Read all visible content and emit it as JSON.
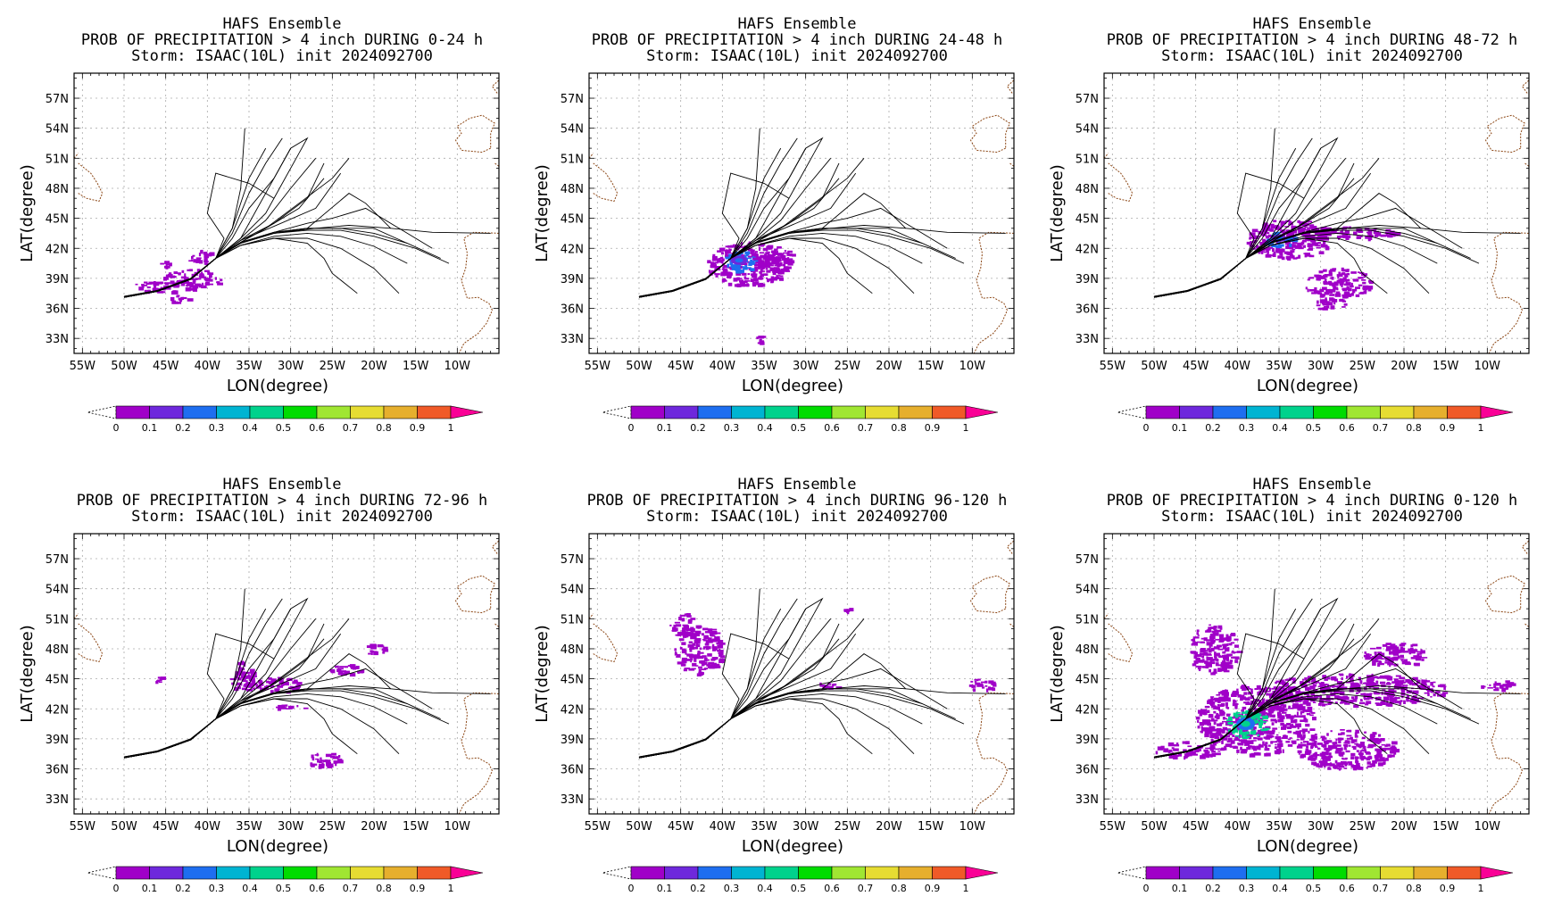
{
  "colors": {
    "colorbar": [
      "#a000c8",
      "#6e28dc",
      "#1e6ef0",
      "#00b4d2",
      "#00d28c",
      "#00dc00",
      "#a0e632",
      "#e6dc32",
      "#e6af2d",
      "#f05a28",
      "#fa0096"
    ],
    "land_outline": "#8b4513",
    "grid": "#aaaaaa",
    "track": "#000000"
  },
  "chart_data": [
    {
      "type": "heatmap",
      "title_lines": [
        "HAFS Ensemble",
        "PROB OF PRECIPITATION > 4 inch DURING  0-24 h",
        "Storm: ISAAC(10L) init 2024092700"
      ],
      "xlabel": "LON(degree)",
      "ylabel": "LAT(degree)",
      "xticks": [
        "55W",
        "50W",
        "45W",
        "40W",
        "35W",
        "30W",
        "25W",
        "20W",
        "15W",
        "10W"
      ],
      "yticks": [
        "57N",
        "54N",
        "51N",
        "48N",
        "45N",
        "42N",
        "39N",
        "36N",
        "33N"
      ],
      "xlim": [
        -56,
        -5
      ],
      "ylim": [
        31.5,
        59.5
      ],
      "grid": true,
      "colorbar_ticks": [
        "0",
        "0.1",
        "0.2",
        "0.3",
        "0.4",
        "0.5",
        "0.6",
        "0.7",
        "0.8",
        "0.9",
        "1"
      ],
      "precip_areas": [
        {
          "lon": -42,
          "lat": 39.0,
          "rlon": 3.5,
          "rlat": 1.0,
          "value": 0.05
        },
        {
          "lon": -46,
          "lat": 38.2,
          "rlon": 3.0,
          "rlat": 0.6,
          "value": 0.08
        },
        {
          "lon": -41,
          "lat": 41.2,
          "rlon": 1.8,
          "rlat": 0.7,
          "value": 0.04
        },
        {
          "lon": -43.5,
          "lat": 37.0,
          "rlon": 1.2,
          "rlat": 0.5,
          "value": 0.03
        },
        {
          "lon": -45,
          "lat": 40.5,
          "rlon": 0.7,
          "rlat": 0.3,
          "value": 0.02
        }
      ]
    },
    {
      "type": "heatmap",
      "title_lines": [
        "HAFS Ensemble",
        "PROB OF PRECIPITATION > 4 inch DURING 24-48 h",
        "Storm: ISAAC(10L) init 2024092700"
      ],
      "xlabel": "LON(degree)",
      "ylabel": "LAT(degree)",
      "xticks": [
        "55W",
        "50W",
        "45W",
        "40W",
        "35W",
        "30W",
        "25W",
        "20W",
        "15W",
        "10W"
      ],
      "yticks": [
        "57N",
        "54N",
        "51N",
        "48N",
        "45N",
        "42N",
        "39N",
        "36N",
        "33N"
      ],
      "xlim": [
        -56,
        -5
      ],
      "ylim": [
        31.5,
        59.5
      ],
      "grid": true,
      "colorbar_ticks": [
        "0",
        "0.1",
        "0.2",
        "0.3",
        "0.4",
        "0.5",
        "0.6",
        "0.7",
        "0.8",
        "0.9",
        "1"
      ],
      "precip_areas": [
        {
          "lon": -37,
          "lat": 40.5,
          "rlon": 5.0,
          "rlat": 2.2,
          "value": 0.06
        },
        {
          "lon": -38,
          "lat": 40.8,
          "rlon": 2.2,
          "rlat": 1.0,
          "value": 0.25
        },
        {
          "lon": -34,
          "lat": 41.0,
          "rlon": 2.5,
          "rlat": 1.3,
          "value": 0.08
        },
        {
          "lon": -35.5,
          "lat": 33.0,
          "rlon": 0.8,
          "rlat": 0.4,
          "value": 0.03
        }
      ]
    },
    {
      "type": "heatmap",
      "title_lines": [
        "HAFS Ensemble",
        "PROB OF PRECIPITATION > 4 inch DURING 48-72 h",
        "Storm: ISAAC(10L) init 2024092700"
      ],
      "xlabel": "LON(degree)",
      "ylabel": "LAT(degree)",
      "xticks": [
        "55W",
        "50W",
        "45W",
        "40W",
        "35W",
        "30W",
        "25W",
        "20W",
        "15W",
        "10W"
      ],
      "yticks": [
        "57N",
        "54N",
        "51N",
        "48N",
        "45N",
        "42N",
        "39N",
        "36N",
        "33N"
      ],
      "xlim": [
        -56,
        -5
      ],
      "ylim": [
        31.5,
        59.5
      ],
      "grid": true,
      "colorbar_ticks": [
        "0",
        "0.1",
        "0.2",
        "0.3",
        "0.4",
        "0.5",
        "0.6",
        "0.7",
        "0.8",
        "0.9",
        "1"
      ],
      "precip_areas": [
        {
          "lon": -34,
          "lat": 43.0,
          "rlon": 5.0,
          "rlat": 2.0,
          "value": 0.07
        },
        {
          "lon": -35,
          "lat": 43.0,
          "rlon": 2.0,
          "rlat": 0.8,
          "value": 0.22
        },
        {
          "lon": -27,
          "lat": 43.6,
          "rlon": 6.0,
          "rlat": 0.6,
          "value": 0.05
        },
        {
          "lon": -28,
          "lat": 38.5,
          "rlon": 4.0,
          "rlat": 1.6,
          "value": 0.04
        },
        {
          "lon": -29,
          "lat": 36.5,
          "rlon": 2.0,
          "rlat": 0.6,
          "value": 0.03
        }
      ]
    },
    {
      "type": "heatmap",
      "title_lines": [
        "HAFS Ensemble",
        "PROB OF PRECIPITATION > 4 inch DURING 72-96 h",
        "Storm: ISAAC(10L) init 2024092700"
      ],
      "xlabel": "LON(degree)",
      "ylabel": "LAT(degree)",
      "xticks": [
        "55W",
        "50W",
        "45W",
        "40W",
        "35W",
        "30W",
        "25W",
        "20W",
        "15W",
        "10W"
      ],
      "yticks": [
        "57N",
        "54N",
        "51N",
        "48N",
        "45N",
        "42N",
        "39N",
        "36N",
        "33N"
      ],
      "xlim": [
        -56,
        -5
      ],
      "ylim": [
        31.5,
        59.5
      ],
      "grid": true,
      "colorbar_ticks": [
        "0",
        "0.1",
        "0.2",
        "0.3",
        "0.4",
        "0.5",
        "0.6",
        "0.7",
        "0.8",
        "0.9",
        "1"
      ],
      "precip_areas": [
        {
          "lon": -36,
          "lat": 45.3,
          "rlon": 1.5,
          "rlat": 1.5,
          "value": 0.06
        },
        {
          "lon": -32,
          "lat": 44.5,
          "rlon": 3.0,
          "rlat": 0.8,
          "value": 0.05
        },
        {
          "lon": -23,
          "lat": 46.0,
          "rlon": 2.5,
          "rlat": 0.5,
          "value": 0.04
        },
        {
          "lon": -20,
          "lat": 48.0,
          "rlon": 1.2,
          "rlat": 0.6,
          "value": 0.04
        },
        {
          "lon": -30,
          "lat": 42.3,
          "rlon": 2.0,
          "rlat": 0.3,
          "value": 0.03
        },
        {
          "lon": -26,
          "lat": 37.0,
          "rlon": 2.0,
          "rlat": 0.8,
          "value": 0.03
        },
        {
          "lon": -46,
          "lat": 45.0,
          "rlon": 0.5,
          "rlat": 0.5,
          "value": 0.02
        }
      ]
    },
    {
      "type": "heatmap",
      "title_lines": [
        "HAFS Ensemble",
        "PROB OF PRECIPITATION > 4 inch DURING 96-120 h",
        "Storm: ISAAC(10L) init 2024092700"
      ],
      "xlabel": "LON(degree)",
      "ylabel": "LAT(degree)",
      "xticks": [
        "55W",
        "50W",
        "45W",
        "40W",
        "35W",
        "30W",
        "25W",
        "20W",
        "15W",
        "10W"
      ],
      "yticks": [
        "57N",
        "54N",
        "51N",
        "48N",
        "45N",
        "42N",
        "39N",
        "36N",
        "33N"
      ],
      "xlim": [
        -56,
        -5
      ],
      "ylim": [
        31.5,
        59.5
      ],
      "grid": true,
      "colorbar_ticks": [
        "0",
        "0.1",
        "0.2",
        "0.3",
        "0.4",
        "0.5",
        "0.6",
        "0.7",
        "0.8",
        "0.9",
        "1"
      ],
      "precip_areas": [
        {
          "lon": -43,
          "lat": 48.0,
          "rlon": 3.0,
          "rlat": 2.5,
          "value": 0.05
        },
        {
          "lon": -45,
          "lat": 50.5,
          "rlon": 1.5,
          "rlat": 1.2,
          "value": 0.04
        },
        {
          "lon": -9,
          "lat": 44.5,
          "rlon": 2.0,
          "rlat": 0.6,
          "value": 0.05
        },
        {
          "lon": -27,
          "lat": 44.5,
          "rlon": 1.5,
          "rlat": 0.3,
          "value": 0.02
        },
        {
          "lon": -25,
          "lat": 52.0,
          "rlon": 0.5,
          "rlat": 0.3,
          "value": 0.02
        }
      ]
    },
    {
      "type": "heatmap",
      "title_lines": [
        "HAFS Ensemble",
        "PROB OF PRECIPITATION > 4 inch DURING 0-120 h",
        "Storm: ISAAC(10L) init 2024092700"
      ],
      "xlabel": "LON(degree)",
      "ylabel": "LAT(degree)",
      "xticks": [
        "55W",
        "50W",
        "45W",
        "40W",
        "35W",
        "30W",
        "25W",
        "20W",
        "15W",
        "10W"
      ],
      "yticks": [
        "57N",
        "54N",
        "51N",
        "48N",
        "45N",
        "42N",
        "39N",
        "36N",
        "33N"
      ],
      "xlim": [
        -56,
        -5
      ],
      "ylim": [
        31.5,
        59.5
      ],
      "grid": true,
      "colorbar_ticks": [
        "0",
        "0.1",
        "0.2",
        "0.3",
        "0.4",
        "0.5",
        "0.6",
        "0.7",
        "0.8",
        "0.9",
        "1"
      ],
      "precip_areas": [
        {
          "lon": -38,
          "lat": 41.0,
          "rlon": 7.0,
          "rlat": 3.5,
          "value": 0.07
        },
        {
          "lon": -39,
          "lat": 40.5,
          "rlon": 2.5,
          "rlat": 1.4,
          "value": 0.4
        },
        {
          "lon": -26,
          "lat": 44.0,
          "rlon": 11.0,
          "rlat": 1.6,
          "value": 0.06
        },
        {
          "lon": -21,
          "lat": 47.5,
          "rlon": 4.0,
          "rlat": 1.2,
          "value": 0.05
        },
        {
          "lon": -43,
          "lat": 48.0,
          "rlon": 3.0,
          "rlat": 2.5,
          "value": 0.05
        },
        {
          "lon": -27,
          "lat": 38.0,
          "rlon": 6.0,
          "rlat": 2.0,
          "value": 0.04
        },
        {
          "lon": -46,
          "lat": 38.0,
          "rlon": 4.0,
          "rlat": 0.8,
          "value": 0.06
        },
        {
          "lon": -9,
          "lat": 44.5,
          "rlon": 2.0,
          "rlat": 0.6,
          "value": 0.05
        }
      ]
    }
  ],
  "ensemble_tracks": [
    {
      "lon": [
        -50,
        -46,
        -42,
        -39,
        -37,
        -36,
        -35.5
      ],
      "lat": [
        37.2,
        37.8,
        39.0,
        41.0,
        44.0,
        48.0,
        54.0
      ]
    },
    {
      "lon": [
        -50,
        -46,
        -42,
        -39,
        -37,
        -35,
        -33
      ],
      "lat": [
        37.2,
        37.8,
        39.0,
        41.0,
        44.0,
        49.0,
        52.0
      ]
    },
    {
      "lon": [
        -50,
        -46,
        -42,
        -39,
        -37,
        -35,
        -33,
        -31
      ],
      "lat": [
        37.1,
        37.7,
        38.9,
        41.0,
        43.5,
        47.5,
        50.5,
        53.0
      ]
    },
    {
      "lon": [
        -50,
        -46,
        -42,
        -39,
        -36,
        -34,
        -32,
        -30
      ],
      "lat": [
        37.1,
        37.7,
        38.9,
        41.0,
        43.0,
        46.0,
        49.0,
        52.0
      ]
    },
    {
      "lon": [
        -50,
        -46,
        -42,
        -39,
        -36,
        -33,
        -31,
        -29
      ],
      "lat": [
        37.1,
        37.7,
        38.9,
        41.0,
        43.0,
        45.5,
        48.5,
        51.5
      ]
    },
    {
      "lon": [
        -50,
        -46,
        -42,
        -39,
        -36,
        -33,
        -30,
        -27
      ],
      "lat": [
        37.1,
        37.7,
        38.9,
        41.0,
        42.8,
        44.8,
        48.0,
        51.0
      ]
    },
    {
      "lon": [
        -50,
        -46,
        -42,
        -39,
        -36,
        -32,
        -28,
        -26
      ],
      "lat": [
        37.1,
        37.7,
        38.9,
        41.0,
        42.8,
        44.5,
        47.0,
        50.5
      ]
    },
    {
      "lon": [
        -50,
        -46,
        -42,
        -39,
        -36,
        -32,
        -27,
        -24
      ],
      "lat": [
        37.1,
        37.7,
        38.9,
        41.0,
        42.8,
        44.2,
        46.0,
        49.5
      ]
    },
    {
      "lon": [
        -50,
        -46,
        -42,
        -39,
        -38,
        -40,
        -39,
        -35,
        -32
      ],
      "lat": [
        37.1,
        37.7,
        38.9,
        41.0,
        43.0,
        45.5,
        49.5,
        48.5,
        47.0
      ]
    },
    {
      "lon": [
        -50,
        -46,
        -42,
        -39,
        -36,
        -32,
        -28,
        -24,
        -20,
        -16,
        -12
      ],
      "lat": [
        37.1,
        37.7,
        38.9,
        41.0,
        42.5,
        43.5,
        44.0,
        44.0,
        43.5,
        42.5,
        41.0
      ]
    },
    {
      "lon": [
        -50,
        -46,
        -42,
        -39,
        -36,
        -32,
        -28,
        -24,
        -20,
        -15,
        -11
      ],
      "lat": [
        37.1,
        37.7,
        38.9,
        41.0,
        42.5,
        43.5,
        43.8,
        43.8,
        43.2,
        42.0,
        40.5
      ]
    },
    {
      "lon": [
        -50,
        -46,
        -42,
        -39,
        -36,
        -32,
        -28,
        -24,
        -20,
        -16
      ],
      "lat": [
        37.1,
        37.7,
        38.9,
        41.0,
        42.3,
        43.2,
        43.5,
        43.2,
        42.2,
        40.5
      ]
    },
    {
      "lon": [
        -50,
        -46,
        -42,
        -39,
        -36,
        -32,
        -28,
        -24,
        -20,
        -17
      ],
      "lat": [
        37.1,
        37.7,
        38.9,
        41.0,
        42.3,
        43.0,
        43.0,
        42.0,
        40.0,
        37.5
      ]
    },
    {
      "lon": [
        -50,
        -46,
        -42,
        -39,
        -36,
        -32,
        -28,
        -26,
        -25,
        -22
      ],
      "lat": [
        37.1,
        37.7,
        38.9,
        41.0,
        42.3,
        43.0,
        42.5,
        41.0,
        39.5,
        37.5
      ]
    },
    {
      "lon": [
        -50,
        -46,
        -42,
        -39,
        -36,
        -32,
        -27,
        -23,
        -18,
        -13,
        -6
      ],
      "lat": [
        37.1,
        37.7,
        38.9,
        41.0,
        42.6,
        43.5,
        44.0,
        44.3,
        44.0,
        43.6,
        43.5
      ]
    },
    {
      "lon": [
        -50,
        -46,
        -42,
        -39,
        -36,
        -32,
        -28,
        -25,
        -21,
        -17,
        -13
      ],
      "lat": [
        37.1,
        37.7,
        38.9,
        41.0,
        42.6,
        43.6,
        44.5,
        45.0,
        46.0,
        44.0,
        42.0
      ]
    },
    {
      "lon": [
        -50,
        -46,
        -42,
        -39,
        -36,
        -32,
        -28,
        -25,
        -20,
        -16
      ],
      "lat": [
        37.1,
        37.7,
        38.9,
        41.0,
        42.6,
        43.6,
        44.0,
        44.0,
        44.0,
        42.5
      ]
    },
    {
      "lon": [
        -50,
        -46,
        -42,
        -39,
        -36,
        -32,
        -28,
        -23,
        -21,
        -18
      ],
      "lat": [
        37.1,
        37.7,
        38.9,
        41.0,
        42.6,
        43.6,
        44.0,
        47.5,
        46.5,
        44.0
      ]
    },
    {
      "lon": [
        -50,
        -46,
        -42,
        -39,
        -37,
        -35,
        -32,
        -30,
        -28,
        -29
      ],
      "lat": [
        37.1,
        37.7,
        38.9,
        41.0,
        43.0,
        46.0,
        49.0,
        52.0,
        53.0,
        51.5
      ]
    },
    {
      "lon": [
        -50,
        -46,
        -42,
        -39,
        -36,
        -33,
        -29,
        -25,
        -23
      ],
      "lat": [
        37.1,
        37.7,
        38.9,
        41.0,
        42.6,
        44.0,
        46.5,
        49.0,
        51.0
      ]
    },
    {
      "lon": [
        -50,
        -46,
        -42,
        -39,
        -36,
        -33,
        -29,
        -27,
        -26
      ],
      "lat": [
        37.1,
        37.7,
        38.9,
        41.0,
        42.6,
        44.0,
        46.0,
        48.0,
        49.0
      ]
    }
  ]
}
